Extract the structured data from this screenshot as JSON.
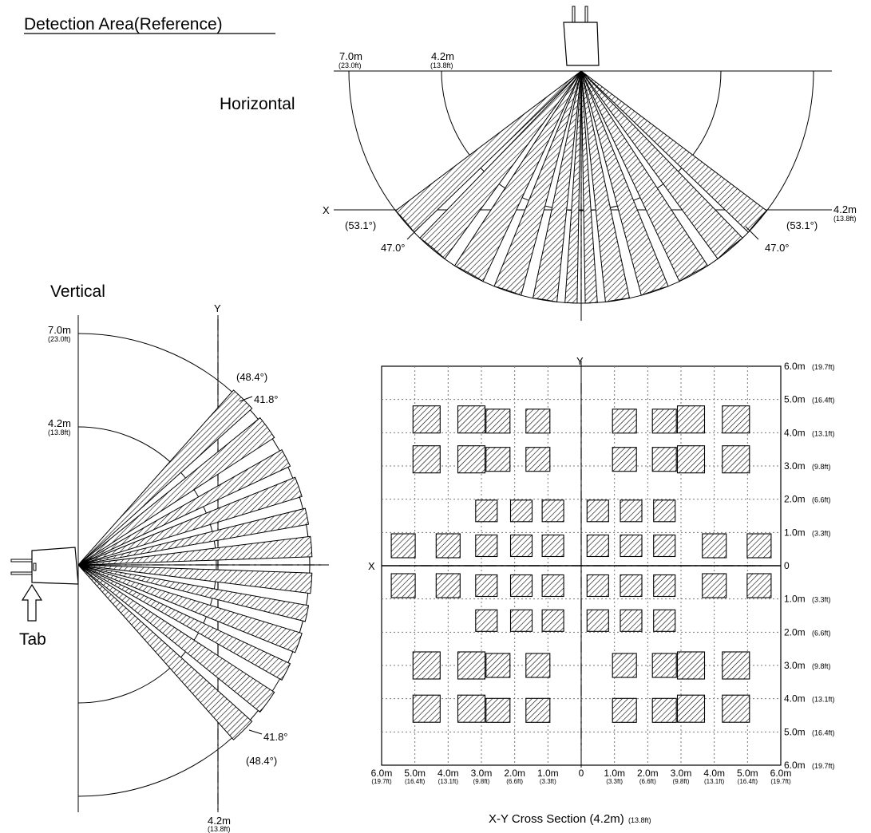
{
  "title": "Detection Area(Reference)",
  "horizontal": {
    "heading": "Horizontal",
    "arc_outer": {
      "m": "7.0m",
      "ft": "(23.0ft)"
    },
    "arc_inner": {
      "m": "4.2m",
      "ft": "(13.8ft)"
    },
    "axis_x": "X",
    "right_dist": {
      "m": "4.2m",
      "ft": "(13.8ft)"
    },
    "angle_outer_left": "(53.1°)",
    "angle_outer_right": "(53.1°)",
    "angle_inner_left": "47.0°",
    "angle_inner_right": "47.0°"
  },
  "vertical": {
    "heading": "Vertical",
    "axis_y": "Y",
    "arc_outer": {
      "m": "7.0m",
      "ft": "(23.0ft)"
    },
    "arc_inner": {
      "m": "4.2m",
      "ft": "(13.8ft)"
    },
    "angle_top_outer": "(48.4°)",
    "angle_top_inner": "41.8°",
    "angle_bottom_inner": "41.8°",
    "angle_bottom_outer": "(48.4°)",
    "bottom_dist": {
      "m": "4.2m",
      "ft": "(13.8ft)"
    },
    "tab_label": "Tab"
  },
  "cross_section": {
    "axis_y": "Y",
    "axis_x": "X",
    "caption_main": "X-Y Cross Section (4.2m)",
    "caption_ft": "(13.8ft)",
    "right_labels": [
      {
        "m": "6.0m",
        "ft": "(19.7ft)"
      },
      {
        "m": "5.0m",
        "ft": "(16.4ft)"
      },
      {
        "m": "4.0m",
        "ft": "(13.1ft)"
      },
      {
        "m": "3.0m",
        "ft": "(9.8ft)"
      },
      {
        "m": "2.0m",
        "ft": "(6.6ft)"
      },
      {
        "m": "1.0m",
        "ft": "(3.3ft)"
      },
      {
        "m": "0",
        "ft": ""
      },
      {
        "m": "1.0m",
        "ft": "(3.3ft)"
      },
      {
        "m": "2.0m",
        "ft": "(6.6ft)"
      },
      {
        "m": "3.0m",
        "ft": "(9.8ft)"
      },
      {
        "m": "4.0m",
        "ft": "(13.1ft)"
      },
      {
        "m": "5.0m",
        "ft": "(16.4ft)"
      },
      {
        "m": "6.0m",
        "ft": "(19.7ft)"
      }
    ],
    "bottom_labels": [
      {
        "m": "6.0m",
        "ft": "(19.7ft)"
      },
      {
        "m": "5.0m",
        "ft": "(16.4ft)"
      },
      {
        "m": "4.0m",
        "ft": "(13.1ft)"
      },
      {
        "m": "3.0m",
        "ft": "(9.8ft)"
      },
      {
        "m": "2.0m",
        "ft": "(6.6ft)"
      },
      {
        "m": "1.0m",
        "ft": "(3.3ft)"
      },
      {
        "m": "0",
        "ft": ""
      },
      {
        "m": "1.0m",
        "ft": "(3.3ft)"
      },
      {
        "m": "2.0m",
        "ft": "(6.6ft)"
      },
      {
        "m": "3.0m",
        "ft": "(9.8ft)"
      },
      {
        "m": "4.0m",
        "ft": "(13.1ft)"
      },
      {
        "m": "5.0m",
        "ft": "(16.4ft)"
      },
      {
        "m": "6.0m",
        "ft": "(19.7ft)"
      }
    ]
  }
}
